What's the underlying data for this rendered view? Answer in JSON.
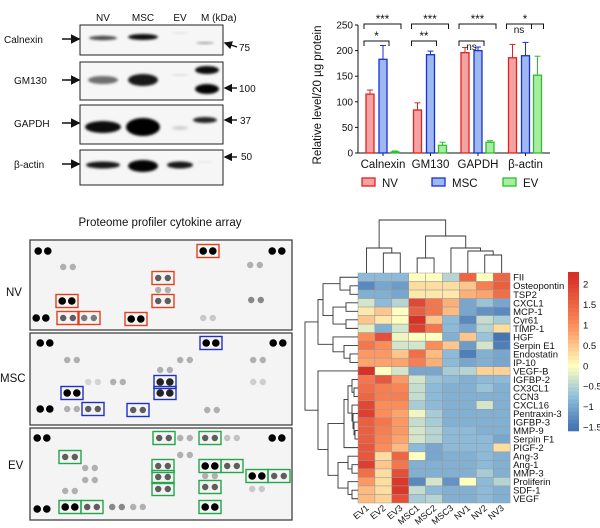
{
  "western_blot": {
    "lanes": [
      "NV",
      "MSC",
      "EV",
      "M (kDa)"
    ],
    "proteins": [
      "Calnexin",
      "GM130",
      "GAPDH",
      "β-actin"
    ],
    "markers": [
      "75",
      "100",
      "37",
      "50"
    ]
  },
  "cytokine_array": {
    "title": "Proteome profiler cytokine array",
    "panels": [
      "NV",
      "MSC",
      "EV"
    ],
    "box_colors": {
      "NV": "#e2401c",
      "MSC": "#1f2fc8",
      "EV": "#22a84a"
    }
  },
  "chart_data": [
    {
      "type": "bar",
      "title": "",
      "xlabel": "",
      "ylabel": "Relative level/20 µg protein",
      "ylim": [
        0,
        250
      ],
      "yticks": [
        "0",
        "50",
        "100",
        "150",
        "200",
        "250"
      ],
      "categories": [
        "Calnexin",
        "GM130",
        "GAPDH",
        "β-actin"
      ],
      "legend_position": "bottom",
      "series": [
        {
          "name": "NV",
          "values": [
            115,
            84,
            196,
            186
          ],
          "errors": [
            8,
            14,
            10,
            26
          ],
          "fill": "#f4a3a3",
          "stroke": "#e3211f"
        },
        {
          "name": "MSC",
          "values": [
            183,
            192,
            200,
            190
          ],
          "errors": [
            27,
            7,
            7,
            26
          ],
          "fill": "#9db9f0",
          "stroke": "#1a2fd6"
        },
        {
          "name": "EV",
          "values": [
            2,
            15,
            21,
            152
          ],
          "errors": [
            2,
            6,
            3,
            37
          ],
          "fill": "#a8eca2",
          "stroke": "#2cbf2c"
        }
      ],
      "significance": [
        {
          "category": "Calnexin",
          "pair": [
            "NV",
            "MSC"
          ],
          "label": "*"
        },
        {
          "category": "Calnexin",
          "pair": [
            "NV",
            "EV"
          ],
          "label": "***"
        },
        {
          "category": "GM130",
          "pair": [
            "NV",
            "MSC"
          ],
          "label": "**"
        },
        {
          "category": "GM130",
          "pair": [
            "NV",
            "EV"
          ],
          "label": "***"
        },
        {
          "category": "GAPDH",
          "pair": [
            "NV",
            "MSC"
          ],
          "label": "ns"
        },
        {
          "category": "GAPDH",
          "pair": [
            "NV",
            "EV"
          ],
          "label": "***"
        },
        {
          "category": "β-actin",
          "pair": [
            "NV",
            "MSC"
          ],
          "label": "ns"
        },
        {
          "category": "β-actin",
          "pair": [
            "NV",
            "EV"
          ],
          "label": "*"
        }
      ]
    },
    {
      "type": "heatmap",
      "title": "",
      "columns": [
        "EV1",
        "EV2",
        "EV3",
        "MSC1",
        "MSC2",
        "MSC3",
        "NV1",
        "NV2",
        "NV3"
      ],
      "rows": [
        "FII",
        "Osteopontin",
        "TSP2",
        "CXCL1",
        "MCP-1",
        "Cyr61",
        "TIMP-1",
        "HGF",
        "Serpin E1",
        "Endostatin",
        "IP-10",
        "VEGF-B",
        "IGFBP-2",
        "CX3CL1",
        "CCN3",
        "CXCL16",
        "Pentraxin-3",
        "IGFBP-3",
        "MMP-9",
        "Serpin F1",
        "PIGF-2",
        "Ang-3",
        "Ang-1",
        "MMP-3",
        "Proliferin",
        "SDF-1",
        "VEGF"
      ],
      "values": [
        [
          -0.8,
          -0.8,
          -0.8,
          0,
          0,
          -0.5,
          1.5,
          0,
          1.5
        ],
        [
          -1.3,
          -1,
          -1.1,
          0.3,
          0.3,
          0.3,
          0.5,
          1.2,
          1.6
        ],
        [
          -0.9,
          -0.9,
          -1,
          0.2,
          0.2,
          0.2,
          0.7,
          0.8,
          1.4
        ],
        [
          -0.3,
          -0.8,
          -0.5,
          1.9,
          1.3,
          0.7,
          -1,
          -0.7,
          -1
        ],
        [
          0.2,
          0.5,
          0,
          1.6,
          1.3,
          0.6,
          -1,
          -1.2,
          -1.3
        ],
        [
          0.5,
          0.2,
          0,
          2.2,
          0.5,
          -0.8,
          -1.3,
          -0.4,
          -0.6
        ],
        [
          -0.2,
          -0.9,
          -0.3,
          2,
          1.3,
          -0.8,
          -1,
          -0.5,
          0.3
        ],
        [
          1,
          1.8,
          -0.1,
          0,
          0,
          -0.9,
          0.5,
          -0.7,
          -1.5
        ],
        [
          1.3,
          1,
          -0.3,
          -0.3,
          1,
          0.5,
          -1.1,
          -0.3,
          -1.4
        ],
        [
          0.9,
          0.9,
          0.5,
          1.4,
          0.6,
          -0.8,
          -1.4,
          -0.9,
          -1
        ],
        [
          0.8,
          0.8,
          0.8,
          1.2,
          0.7,
          -0.8,
          -1,
          -0.9,
          -1
        ],
        [
          2.2,
          0,
          -0.3,
          -1,
          -1,
          -0.6,
          -0.5,
          0.4,
          0.4
        ],
        [
          1.3,
          1.7,
          0.9,
          -0.3,
          -0.7,
          -0.8,
          -0.9,
          -0.8,
          -0.8
        ],
        [
          1.4,
          1.2,
          1.1,
          -0.4,
          -0.8,
          -0.9,
          -0.9,
          -0.7,
          -0.9
        ],
        [
          1.5,
          1.2,
          1.2,
          -0.4,
          -0.8,
          -0.9,
          -0.9,
          -0.9,
          -0.9
        ],
        [
          1.9,
          1,
          1,
          -0.6,
          -0.8,
          -0.9,
          -0.9,
          -0.3,
          -0.9
        ],
        [
          2,
          1,
          0.8,
          -0.1,
          -0.6,
          -0.9,
          -0.9,
          -0.9,
          -0.9
        ],
        [
          1.6,
          1.3,
          0.9,
          -0.4,
          -0.6,
          -0.9,
          -0.9,
          -0.9,
          -0.9
        ],
        [
          1.6,
          1.2,
          0.9,
          -0.3,
          -0.5,
          -0.8,
          -0.8,
          -0.9,
          -0.9
        ],
        [
          1.6,
          1.1,
          0.8,
          -0.3,
          -0.5,
          -0.8,
          -0.8,
          -0.8,
          -1
        ],
        [
          1.7,
          1,
          0.6,
          -0.8,
          -1,
          -0.8,
          -0.8,
          -0.8,
          0.3
        ],
        [
          1.7,
          0.3,
          1.5,
          0,
          -1,
          -0.9,
          -0.9,
          -0.8,
          -0.9
        ],
        [
          2,
          0.5,
          1.3,
          -0.9,
          -0.9,
          -0.9,
          -0.9,
          -0.8,
          -0.9
        ],
        [
          1.4,
          0.3,
          1.8,
          -0.9,
          -0.9,
          -0.9,
          -0.9,
          -0.6,
          -0.9
        ],
        [
          0.9,
          0.3,
          2.1,
          -1.3,
          -0.3,
          -1.2,
          0,
          -0.8,
          -0.5
        ],
        [
          0.6,
          0.3,
          2.1,
          -0.4,
          -0.8,
          -0.9,
          -0.9,
          -0.8,
          -0.9
        ],
        [
          0.6,
          0.4,
          1.8,
          -0.6,
          -0.5,
          -0.9,
          -0.9,
          -0.8,
          -0.9
        ]
      ],
      "colorbar": {
        "ticks": [
          "2",
          "1.5",
          "1",
          "0.5",
          "0",
          "−0.5",
          "−1",
          "−1.5"
        ],
        "tick_values": [
          2,
          1.5,
          1,
          0.5,
          0,
          -0.5,
          -1,
          -1.5
        ],
        "range": [
          -1.6,
          2.3
        ],
        "low": "#4575b4",
        "mid": "#ffffbf",
        "high": "#d73027"
      },
      "dendrograms": {
        "rows": true,
        "columns": true
      }
    }
  ]
}
